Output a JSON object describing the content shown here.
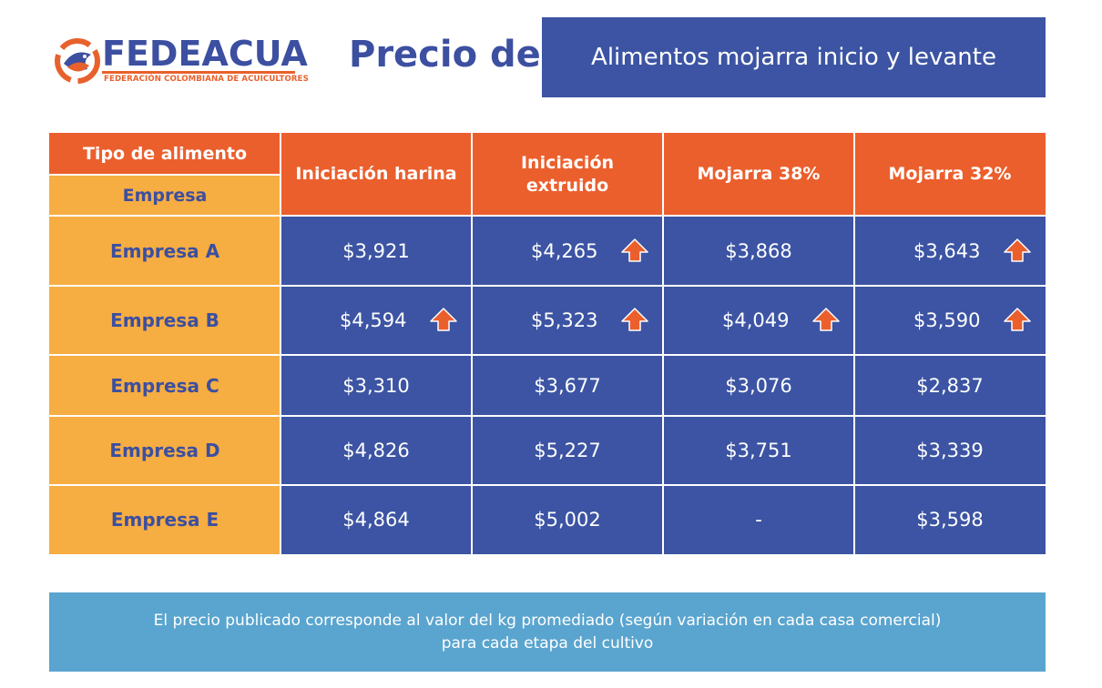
{
  "logo": {
    "name": "FEDEACUA",
    "subtitle": "FEDERACIÓN COLOMBIANA DE ACUICULTORES"
  },
  "header": {
    "prefix": "Precio de",
    "title": "Alimentos mojarra inicio y levante"
  },
  "table": {
    "corner_top": "Tipo de alimento",
    "corner_bottom": "Empresa",
    "columns": [
      [
        "Iniciación harina"
      ],
      [
        "Iniciación",
        "extruido"
      ],
      [
        "Mojarra 38%"
      ],
      [
        "Mojarra 32%"
      ]
    ],
    "rows": [
      {
        "label": "Empresa A",
        "values": [
          "$3,921",
          "$4,265",
          "$3,868",
          "$3,643"
        ],
        "up": [
          false,
          true,
          false,
          true
        ]
      },
      {
        "label": "Empresa B",
        "values": [
          "$4,594",
          "$5,323",
          "$4,049",
          "$3,590"
        ],
        "up": [
          true,
          true,
          true,
          true
        ]
      },
      {
        "label": "Empresa C",
        "values": [
          "$3,310",
          "$3,677",
          "$3,076",
          "$2,837"
        ],
        "up": [
          false,
          false,
          false,
          false
        ]
      },
      {
        "label": "Empresa D",
        "values": [
          "$4,826",
          "$5,227",
          "$3,751",
          "$3,339"
        ],
        "up": [
          false,
          false,
          false,
          false
        ]
      },
      {
        "label": "Empresa E",
        "values": [
          "$4,864",
          "$5,002",
          "-",
          "$3,598"
        ],
        "up": [
          false,
          false,
          false,
          false
        ]
      }
    ],
    "arrow_icon": "arrow-up-icon"
  },
  "footer": {
    "line1": "El precio publicado corresponde  al valor del kg promediado (según variación en cada casa comercial)",
    "line2": "para cada etapa del cultivo"
  },
  "colors": {
    "brand_blue": "#3c54a3",
    "brand_orange": "#eb5f2d",
    "row_label": "#f6ad42",
    "footer": "#5aa5cf"
  }
}
